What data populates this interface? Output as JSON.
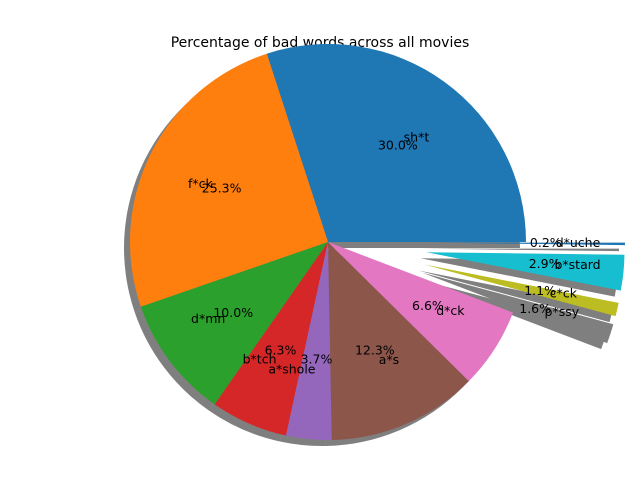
{
  "chart_data": {
    "type": "pie",
    "title": "Percentage of bad words across all movies",
    "shadow": true,
    "slices": [
      {
        "label": "sh*t",
        "value": 30.0,
        "pct_label": "30.0%",
        "color": "#1f77b4",
        "explode": 0
      },
      {
        "label": "f*ck",
        "value": 25.3,
        "pct_label": "25.3%",
        "color": "#ff7f0e",
        "explode": 0
      },
      {
        "label": "d*mn",
        "value": 10.0,
        "pct_label": "10.0%",
        "color": "#2ca02c",
        "explode": 0
      },
      {
        "label": "b*tch",
        "value": 6.3,
        "pct_label": "6.3%",
        "color": "#d62728",
        "explode": 0
      },
      {
        "label": "a*shole",
        "value": 3.7,
        "pct_label": "3.7%",
        "color": "#9467bd",
        "explode": 0
      },
      {
        "label": "a*s",
        "value": 12.3,
        "pct_label": "12.3%",
        "color": "#8c564b",
        "explode": 0
      },
      {
        "label": "d*ck",
        "value": 6.6,
        "pct_label": "6.6%",
        "color": "#e377c2",
        "explode": 0
      },
      {
        "label": "p*ssy",
        "value": 1.6,
        "pct_label": "1.6%",
        "color": "#7f7f7f",
        "explode": 0.5
      },
      {
        "label": "c*ck",
        "value": 1.1,
        "pct_label": "1.1%",
        "color": "#bcbd22",
        "explode": 0.5
      },
      {
        "label": "b*stard",
        "value": 2.9,
        "pct_label": "2.9%",
        "color": "#17becf",
        "explode": 0.5
      },
      {
        "label": "d*uche",
        "value": 0.2,
        "pct_label": "0.2%",
        "color": "#1f77b4",
        "explode": 0.5
      }
    ]
  }
}
